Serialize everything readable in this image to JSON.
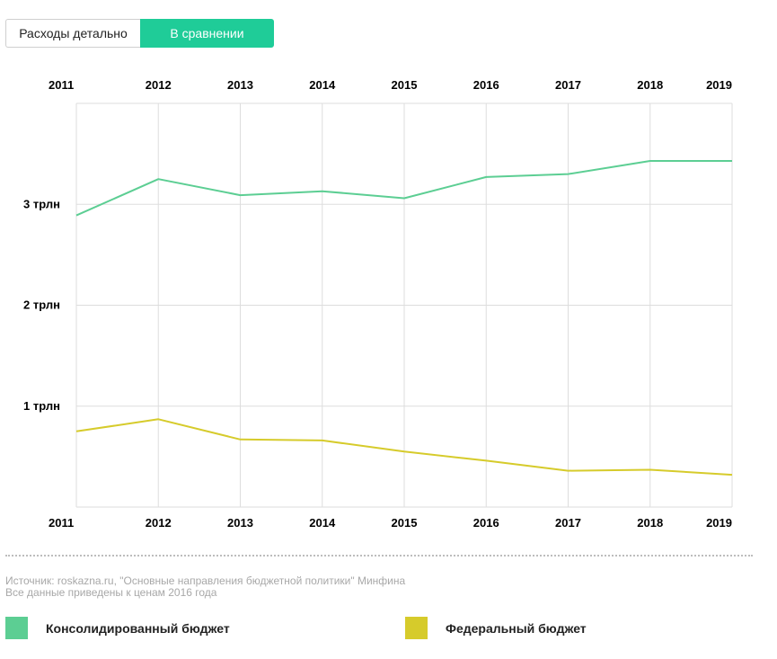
{
  "tabs": [
    {
      "label": "Расходы детально",
      "active": false
    },
    {
      "label": "В сравнении",
      "active": true
    }
  ],
  "colors": {
    "accent": "#1fcc98",
    "consolidated": "#5cce93",
    "federal": "#d6cb2b",
    "grid": "#dddddd"
  },
  "chart_data": {
    "type": "line",
    "title": "",
    "xlabel": "",
    "ylabel": "",
    "x": [
      "2011",
      "2012",
      "2013",
      "2014",
      "2015",
      "2016",
      "2017",
      "2018",
      "2019"
    ],
    "y_ticks": [
      {
        "value": 1,
        "label": "1 трлн"
      },
      {
        "value": 2,
        "label": "2 трлн"
      },
      {
        "value": 3,
        "label": "3 трлн"
      }
    ],
    "ylim": [
      0,
      4
    ],
    "grid": true,
    "legend": "bottom",
    "series": [
      {
        "name": "Консолидированный бюджет",
        "color": "#5cce93",
        "values": [
          2.89,
          3.25,
          3.09,
          3.13,
          3.06,
          3.27,
          3.3,
          3.43,
          3.43
        ]
      },
      {
        "name": "Федеральный бюджет",
        "color": "#d6cb2b",
        "values": [
          0.75,
          0.87,
          0.67,
          0.66,
          0.55,
          0.46,
          0.36,
          0.37,
          0.32
        ]
      }
    ]
  },
  "source": {
    "line1": "Источник: roskazna.ru, \"Основные направления бюджетной политики\" Минфина",
    "line2": "Все данные приведены к ценам 2016 года"
  },
  "legend": [
    {
      "label": "Консолидированный бюджет",
      "color": "#5cce93"
    },
    {
      "label": "Федеральный бюджет",
      "color": "#d6cb2b"
    }
  ]
}
